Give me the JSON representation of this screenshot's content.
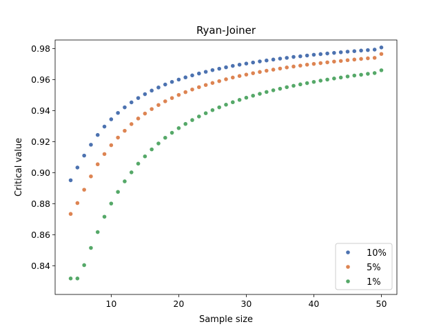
{
  "chart_data": {
    "type": "scatter",
    "title": "Ryan-Joiner",
    "xlabel": "Sample size",
    "ylabel": "Critical value",
    "xlim": [
      1.7,
      52.3
    ],
    "ylim": [
      0.8215,
      0.9855
    ],
    "xticks": [
      10,
      20,
      30,
      40,
      50
    ],
    "yticks": [
      0.84,
      0.86,
      0.88,
      0.9,
      0.92,
      0.94,
      0.96,
      0.98
    ],
    "ytick_labels": [
      "0.84",
      "0.86",
      "0.88",
      "0.90",
      "0.92",
      "0.94",
      "0.96",
      "0.98"
    ],
    "grid": false,
    "legend_position": "bottom-right",
    "x": [
      4,
      5,
      6,
      7,
      8,
      9,
      10,
      11,
      12,
      13,
      14,
      15,
      16,
      17,
      18,
      19,
      20,
      21,
      22,
      23,
      24,
      25,
      26,
      27,
      28,
      29,
      30,
      31,
      32,
      33,
      34,
      35,
      36,
      37,
      38,
      39,
      40,
      41,
      42,
      43,
      44,
      45,
      46,
      47,
      48,
      49,
      50
    ],
    "series": [
      {
        "name": "10%",
        "color": "#4c72b0",
        "values": [
          0.8951,
          0.9033,
          0.911,
          0.918,
          0.9243,
          0.9297,
          0.9344,
          0.9385,
          0.9421,
          0.9453,
          0.9481,
          0.9506,
          0.9529,
          0.9549,
          0.9568,
          0.9585,
          0.96,
          0.9614,
          0.9627,
          0.9639,
          0.965,
          0.9661,
          0.967,
          0.9679,
          0.9688,
          0.9696,
          0.9703,
          0.971,
          0.9717,
          0.9723,
          0.9729,
          0.9735,
          0.974,
          0.9746,
          0.975,
          0.9755,
          0.976,
          0.9764,
          0.9768,
          0.9772,
          0.9776,
          0.978,
          0.9783,
          0.9787,
          0.979,
          0.9793,
          0.9807
        ]
      },
      {
        "name": "5%",
        "color": "#dd8452",
        "values": [
          0.8734,
          0.8804,
          0.889,
          0.8976,
          0.9054,
          0.912,
          0.9177,
          0.9226,
          0.927,
          0.9313,
          0.9349,
          0.9381,
          0.941,
          0.9436,
          0.946,
          0.9481,
          0.9501,
          0.9519,
          0.9536,
          0.9551,
          0.9565,
          0.9578,
          0.959,
          0.9602,
          0.9613,
          0.9623,
          0.9632,
          0.9641,
          0.9649,
          0.9657,
          0.9664,
          0.9671,
          0.9678,
          0.9684,
          0.969,
          0.9696,
          0.9701,
          0.9706,
          0.9711,
          0.9716,
          0.972,
          0.9725,
          0.9729,
          0.9733,
          0.9737,
          0.974,
          0.9765
        ]
      },
      {
        "name": "1%",
        "color": "#55a868",
        "values": [
          0.8318,
          0.8318,
          0.8404,
          0.8515,
          0.8617,
          0.8716,
          0.8801,
          0.8876,
          0.8944,
          0.9002,
          0.9058,
          0.9105,
          0.915,
          0.9188,
          0.9225,
          0.9257,
          0.9287,
          0.9314,
          0.9339,
          0.9362,
          0.9383,
          0.9403,
          0.9421,
          0.9438,
          0.9454,
          0.9469,
          0.9483,
          0.9496,
          0.9508,
          0.952,
          0.9531,
          0.9541,
          0.9551,
          0.956,
          0.9569,
          0.9577,
          0.9585,
          0.9593,
          0.96,
          0.9607,
          0.9613,
          0.962,
          0.9626,
          0.9631,
          0.9637,
          0.9642,
          0.966
        ]
      }
    ]
  }
}
